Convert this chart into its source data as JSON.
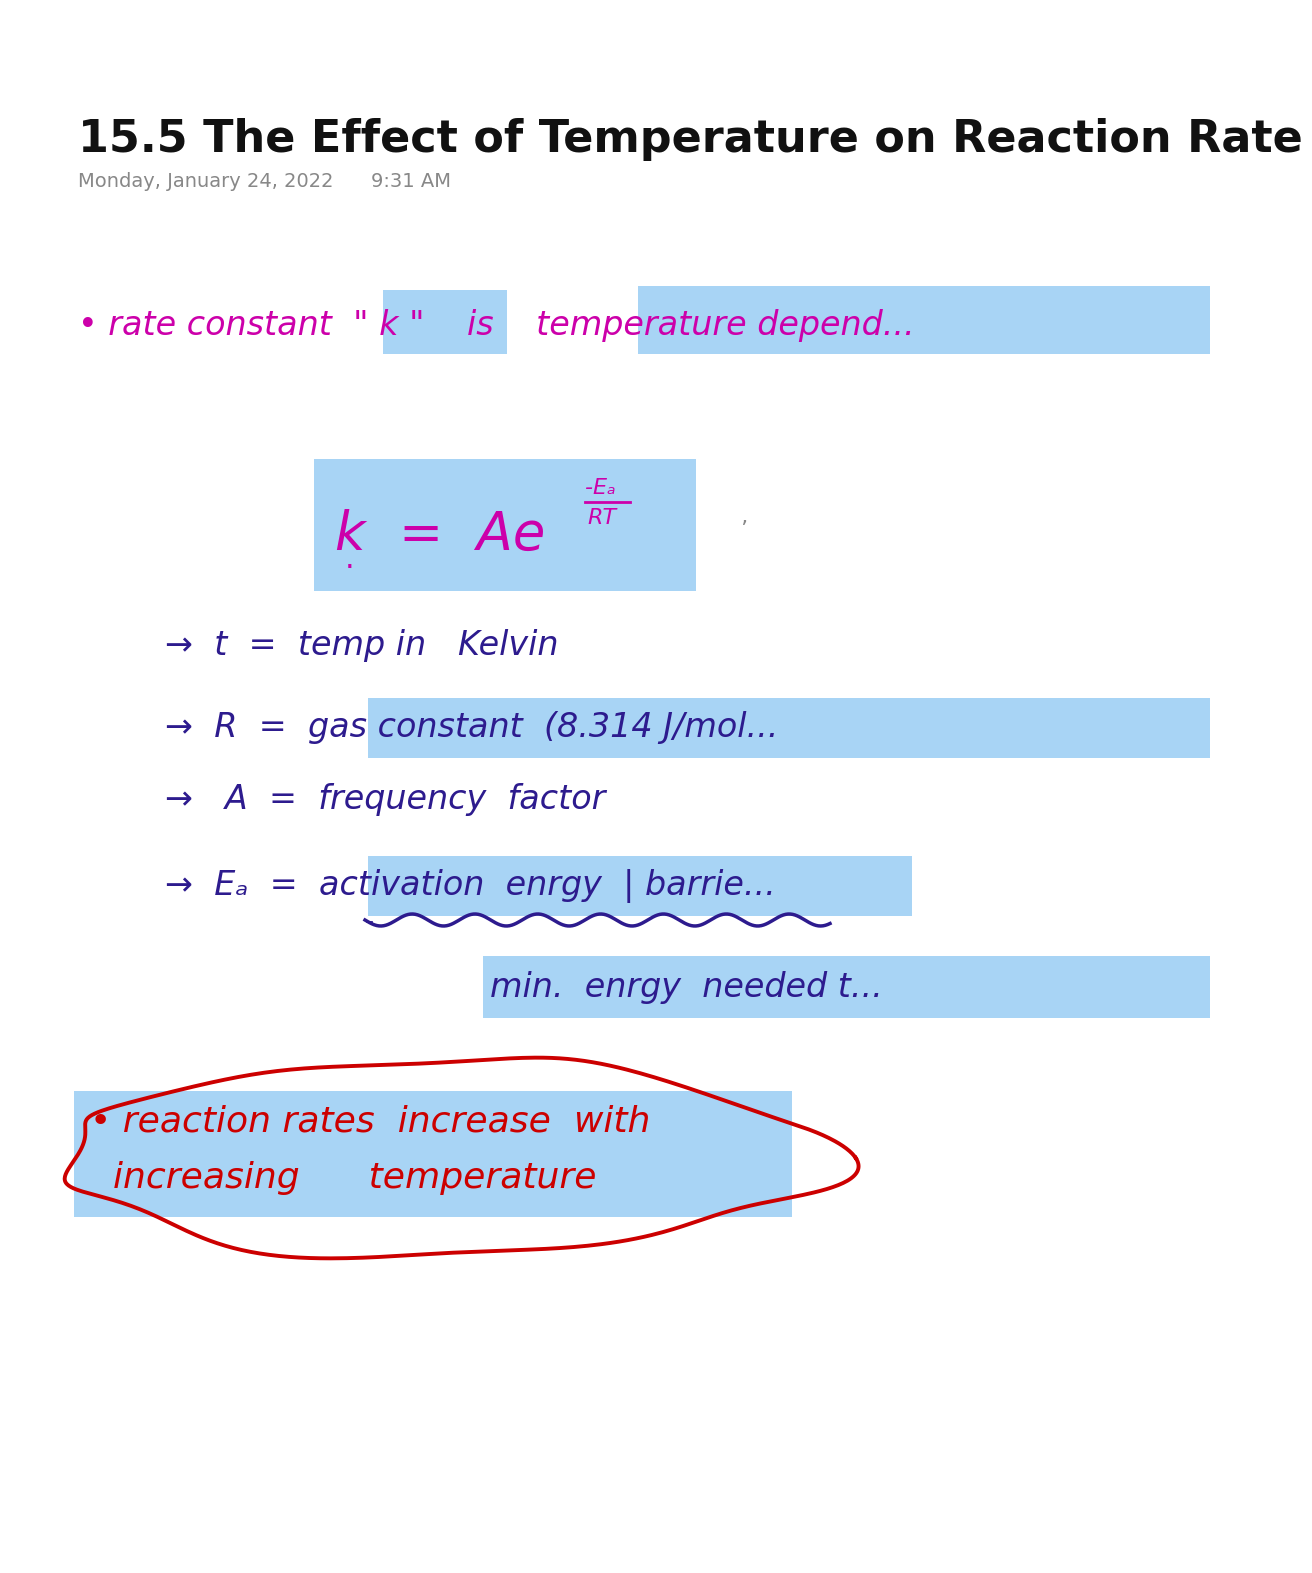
{
  "title": "15.5 The Effect of Temperature on Reaction Rate",
  "date_line": "Monday, January 24, 2022      9:31 AM",
  "bg_color": "#ffffff",
  "blue_highlight": "#a8d4f5",
  "magenta_color": "#cc00aa",
  "dark_purple": "#2d1b8e",
  "dark_red": "#cc0000",
  "title_fontsize": 32,
  "date_fontsize": 14
}
